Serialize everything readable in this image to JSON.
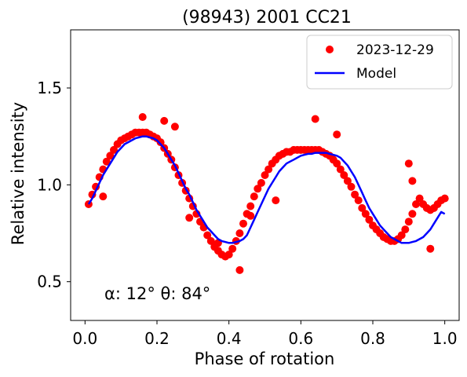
{
  "chart_data": {
    "type": "scatter",
    "title": "(98943) 2001 CC21",
    "xlabel": "Phase of rotation",
    "ylabel": "Relative intensity",
    "xlim": [
      -0.04,
      1.04
    ],
    "ylim": [
      0.3,
      1.8
    ],
    "x_ticks": [
      0.0,
      0.2,
      0.4,
      0.6,
      0.8,
      1.0
    ],
    "x_tick_labels": [
      "0.0",
      "0.2",
      "0.4",
      "0.6",
      "0.8",
      "1.0"
    ],
    "y_ticks": [
      0.5,
      1.0,
      1.5
    ],
    "y_tick_labels": [
      "0.5",
      "1.0",
      "1.5"
    ],
    "grid": false,
    "legend_position": "top-right",
    "annotation": "α: 12° θ: 84°",
    "series": [
      {
        "name": "2023-12-29",
        "kind": "scatter",
        "color": "#ff0000",
        "x": [
          0.01,
          0.02,
          0.03,
          0.04,
          0.05,
          0.06,
          0.07,
          0.08,
          0.09,
          0.1,
          0.11,
          0.12,
          0.13,
          0.14,
          0.15,
          0.16,
          0.17,
          0.18,
          0.19,
          0.2,
          0.21,
          0.22,
          0.23,
          0.24,
          0.25,
          0.26,
          0.27,
          0.28,
          0.29,
          0.3,
          0.31,
          0.32,
          0.33,
          0.34,
          0.35,
          0.36,
          0.37,
          0.38,
          0.39,
          0.4,
          0.41,
          0.42,
          0.43,
          0.44,
          0.45,
          0.46,
          0.47,
          0.48,
          0.49,
          0.5,
          0.51,
          0.52,
          0.53,
          0.54,
          0.55,
          0.56,
          0.57,
          0.58,
          0.59,
          0.6,
          0.61,
          0.62,
          0.63,
          0.64,
          0.65,
          0.66,
          0.67,
          0.68,
          0.69,
          0.7,
          0.71,
          0.72,
          0.73,
          0.74,
          0.75,
          0.76,
          0.77,
          0.78,
          0.79,
          0.8,
          0.81,
          0.82,
          0.83,
          0.84,
          0.85,
          0.86,
          0.87,
          0.88,
          0.89,
          0.9,
          0.91,
          0.92,
          0.93,
          0.94,
          0.95,
          0.96,
          0.97,
          0.98,
          0.99,
          1.0,
          0.16,
          0.22,
          0.25,
          0.64,
          0.7,
          0.9,
          0.91,
          0.46,
          0.43,
          0.96,
          0.53,
          0.29,
          0.37,
          0.05
        ],
        "y": [
          0.9,
          0.95,
          0.99,
          1.04,
          1.08,
          1.12,
          1.15,
          1.18,
          1.21,
          1.23,
          1.24,
          1.25,
          1.26,
          1.27,
          1.27,
          1.27,
          1.27,
          1.26,
          1.25,
          1.24,
          1.22,
          1.19,
          1.16,
          1.13,
          1.09,
          1.05,
          1.01,
          0.97,
          0.93,
          0.89,
          0.85,
          0.81,
          0.78,
          0.74,
          0.71,
          0.68,
          0.66,
          0.64,
          0.63,
          0.64,
          0.67,
          0.71,
          0.75,
          0.8,
          0.85,
          0.89,
          0.94,
          0.98,
          1.01,
          1.05,
          1.08,
          1.11,
          1.13,
          1.15,
          1.16,
          1.17,
          1.17,
          1.18,
          1.18,
          1.18,
          1.18,
          1.18,
          1.18,
          1.18,
          1.18,
          1.17,
          1.16,
          1.15,
          1.13,
          1.11,
          1.08,
          1.05,
          1.02,
          0.99,
          0.95,
          0.92,
          0.88,
          0.85,
          0.82,
          0.79,
          0.77,
          0.75,
          0.73,
          0.72,
          0.71,
          0.71,
          0.72,
          0.74,
          0.77,
          0.81,
          0.85,
          0.9,
          0.93,
          0.9,
          0.88,
          0.87,
          0.88,
          0.9,
          0.92,
          0.93,
          1.35,
          1.33,
          1.3,
          1.34,
          1.26,
          1.11,
          1.02,
          0.84,
          0.56,
          0.67,
          0.92,
          0.83,
          0.7,
          0.94
        ]
      },
      {
        "name": "Model",
        "kind": "line",
        "color": "#0000ff",
        "x": [
          0.01,
          0.02,
          0.03,
          0.04,
          0.05,
          0.06,
          0.07,
          0.08,
          0.09,
          0.1,
          0.11,
          0.12,
          0.13,
          0.14,
          0.15,
          0.16,
          0.17,
          0.18,
          0.19,
          0.2,
          0.21,
          0.22,
          0.23,
          0.24,
          0.25,
          0.26,
          0.27,
          0.28,
          0.29,
          0.3,
          0.31,
          0.32,
          0.33,
          0.34,
          0.35,
          0.36,
          0.37,
          0.38,
          0.39,
          0.4,
          0.41,
          0.42,
          0.43,
          0.44,
          0.45,
          0.46,
          0.47,
          0.48,
          0.49,
          0.5,
          0.51,
          0.52,
          0.53,
          0.54,
          0.55,
          0.56,
          0.57,
          0.58,
          0.59,
          0.6,
          0.61,
          0.62,
          0.63,
          0.64,
          0.65,
          0.66,
          0.67,
          0.68,
          0.69,
          0.7,
          0.71,
          0.72,
          0.73,
          0.74,
          0.75,
          0.76,
          0.77,
          0.78,
          0.79,
          0.8,
          0.81,
          0.82,
          0.83,
          0.84,
          0.85,
          0.86,
          0.87,
          0.88,
          0.89,
          0.9,
          0.91,
          0.92,
          0.93,
          0.94,
          0.95,
          0.96,
          0.97,
          0.98,
          0.99,
          1.0
        ],
        "y": [
          0.9,
          0.93,
          0.97,
          1.01,
          1.05,
          1.08,
          1.11,
          1.14,
          1.17,
          1.19,
          1.21,
          1.22,
          1.23,
          1.24,
          1.245,
          1.25,
          1.25,
          1.245,
          1.24,
          1.23,
          1.21,
          1.19,
          1.16,
          1.13,
          1.1,
          1.06,
          1.02,
          0.98,
          0.95,
          0.91,
          0.87,
          0.84,
          0.81,
          0.78,
          0.76,
          0.74,
          0.72,
          0.71,
          0.705,
          0.7,
          0.7,
          0.705,
          0.71,
          0.72,
          0.74,
          0.78,
          0.82,
          0.86,
          0.9,
          0.94,
          0.98,
          1.01,
          1.04,
          1.07,
          1.09,
          1.11,
          1.12,
          1.13,
          1.14,
          1.15,
          1.155,
          1.16,
          1.16,
          1.165,
          1.165,
          1.165,
          1.165,
          1.16,
          1.155,
          1.15,
          1.14,
          1.12,
          1.1,
          1.07,
          1.04,
          1.0,
          0.96,
          0.92,
          0.88,
          0.85,
          0.82,
          0.79,
          0.77,
          0.75,
          0.73,
          0.72,
          0.71,
          0.7,
          0.7,
          0.7,
          0.705,
          0.71,
          0.72,
          0.73,
          0.75,
          0.77,
          0.8,
          0.83,
          0.86,
          0.85
        ]
      }
    ]
  }
}
